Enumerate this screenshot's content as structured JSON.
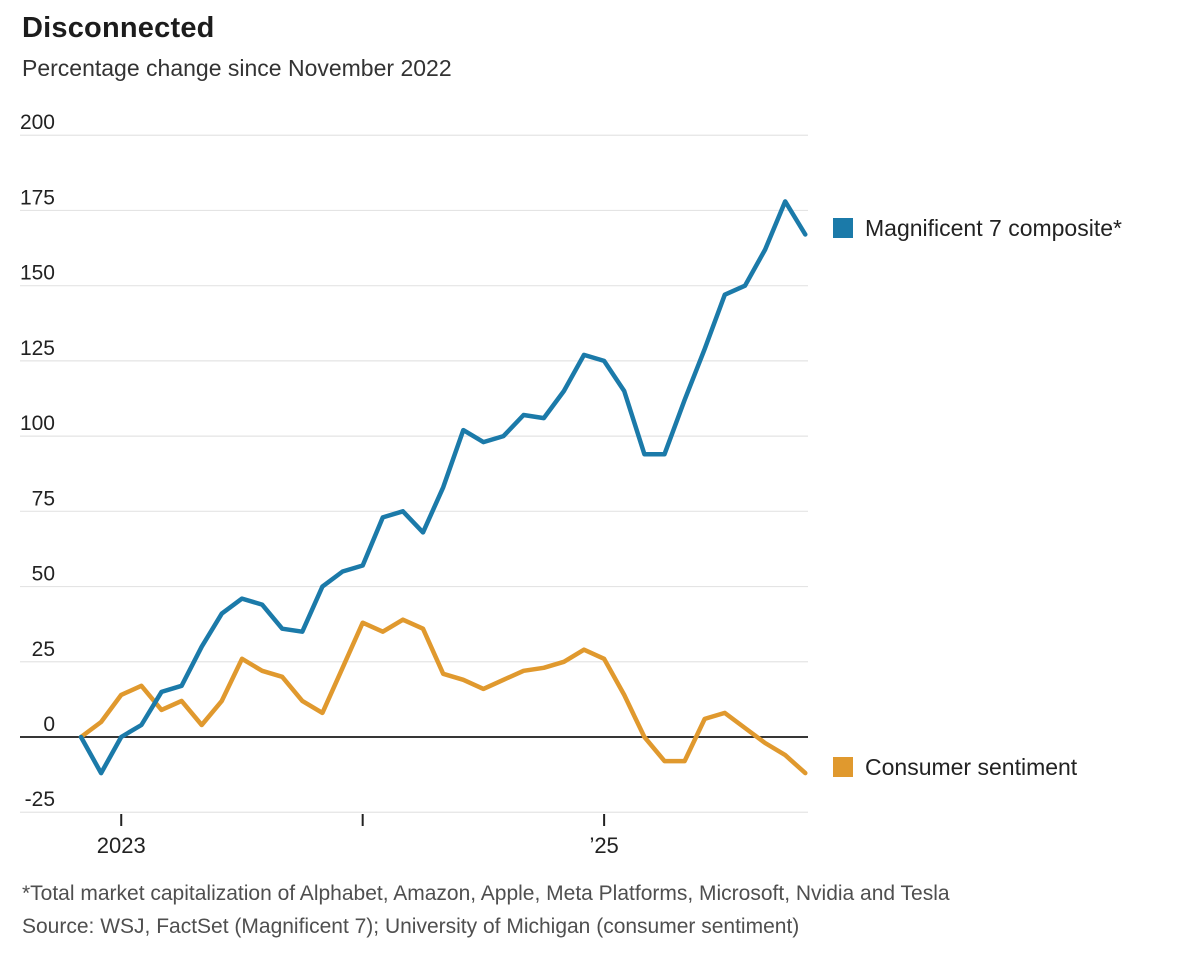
{
  "header": {
    "title": "Disconnected",
    "subtitle": "Percentage change since November 2022"
  },
  "legend": [
    {
      "label": "Magnificent 7 composite*",
      "color": "#1b7aa9"
    },
    {
      "label": "Consumer sentiment",
      "color": "#e0992e"
    }
  ],
  "footer": {
    "footnote": "*Total market capitalization of Alphabet, Amazon, Apple, Meta Platforms, Microsoft, Nvidia and Tesla",
    "source": "Source: WSJ, FactSet (Magnificent 7); University of Michigan (consumer sentiment)"
  },
  "chart_data": {
    "type": "line",
    "title": "Disconnected",
    "subtitle": "Percentage change since November 2022",
    "x": [
      "Nov 2022",
      "Dec 2022",
      "Jan 2023",
      "Feb 2023",
      "Mar 2023",
      "Apr 2023",
      "May 2023",
      "Jun 2023",
      "Jul 2023",
      "Aug 2023",
      "Sep 2023",
      "Oct 2023",
      "Nov 2023",
      "Dec 2023",
      "Jan 2024",
      "Feb 2024",
      "Mar 2024",
      "Apr 2024",
      "May 2024",
      "Jun 2024",
      "Jul 2024",
      "Aug 2024",
      "Sep 2024",
      "Oct 2024",
      "Nov 2024",
      "Dec 2024",
      "Jan 2025",
      "Feb 2025",
      "Mar 2025",
      "Apr 2025",
      "May 2025",
      "Jun 2025",
      "Jul 2025",
      "Aug 2025",
      "Sep 2025",
      "Oct 2025",
      "Nov 2025"
    ],
    "series": [
      {
        "name": "Magnificent 7 composite*",
        "color": "#1b7aa9",
        "values": [
          0,
          -12,
          0,
          4,
          15,
          17,
          30,
          41,
          46,
          44,
          36,
          35,
          50,
          55,
          57,
          73,
          75,
          68,
          83,
          102,
          98,
          100,
          107,
          106,
          115,
          127,
          125,
          115,
          94,
          94,
          112,
          129,
          147,
          150,
          162,
          178,
          167
        ]
      },
      {
        "name": "Consumer sentiment",
        "color": "#e0992e",
        "values": [
          0,
          5,
          14,
          17,
          9,
          12,
          4,
          12,
          26,
          22,
          20,
          12,
          8,
          23,
          38,
          35,
          39,
          36,
          21,
          19,
          16,
          19,
          22,
          23,
          25,
          29,
          26,
          14,
          0,
          -8,
          -8,
          6,
          8,
          3,
          -2,
          -6,
          -12
        ]
      }
    ],
    "ylim": [
      -25,
      200
    ],
    "y_ticks": [
      200,
      175,
      150,
      125,
      100,
      75,
      50,
      25,
      0,
      -25
    ],
    "x_tick_labels": [
      {
        "index": 2,
        "label": "2023"
      },
      {
        "index": 14,
        "label": ""
      },
      {
        "index": 26,
        "label": "’25"
      }
    ],
    "grid": "horizontal",
    "zero_line": true,
    "legend_position": "right",
    "xlabel": "",
    "ylabel": ""
  }
}
